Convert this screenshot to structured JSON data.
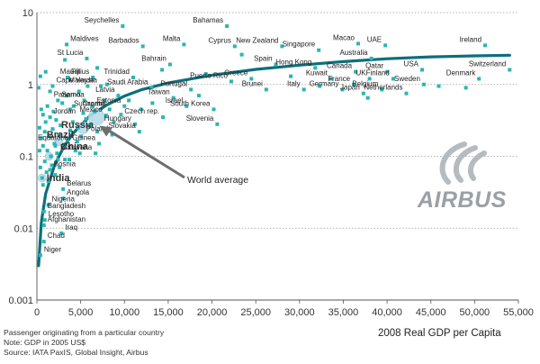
{
  "notes": [
    "Passenger originating from a particular country",
    "Note: GDP in 2005 US$",
    "Source: IATA PaxIS, Global Insight, Airbus"
  ],
  "logo": {
    "text": "AIRBUS"
  },
  "chart_data": {
    "type": "scatter",
    "title": "",
    "xlabel": "2008 Real GDP per Capita",
    "ylabel": "",
    "xlim": [
      0,
      55000
    ],
    "ylim": [
      0.001,
      10
    ],
    "y_scale": "log",
    "grid": "horizontal dotted",
    "x_ticks": [
      {
        "v": 0,
        "label": "0"
      },
      {
        "v": 5000,
        "label": "5,000"
      },
      {
        "v": 10000,
        "label": "10,000"
      },
      {
        "v": 15000,
        "label": "15,000"
      },
      {
        "v": 20000,
        "label": "20,000"
      },
      {
        "v": 25000,
        "label": "25,000"
      },
      {
        "v": 30000,
        "label": "30,000"
      },
      {
        "v": 35000,
        "label": "35,000"
      },
      {
        "v": 40000,
        "label": "40,000"
      },
      {
        "v": 45000,
        "label": "45,000"
      },
      {
        "v": 50000,
        "label": "50,000"
      },
      {
        "v": 55000,
        "label": "55,000"
      }
    ],
    "y_ticks": [
      {
        "v": 10,
        "label": "10"
      },
      {
        "v": 1,
        "label": "1"
      },
      {
        "v": 0.1,
        "label": "0.1"
      },
      {
        "v": 0.01,
        "label": "0.01"
      },
      {
        "v": 0.001,
        "label": "0.001"
      }
    ],
    "colors": {
      "points": "#2ab5b5",
      "trend": "#0d6f7c",
      "big_markers": "#b8dbe8",
      "arrow": "#6e6e6e"
    },
    "labeled_points": [
      {
        "name": "Seychelles",
        "x": 9800,
        "y": 6.5
      },
      {
        "name": "Bahamas",
        "x": 21700,
        "y": 6.5
      },
      {
        "name": "Maldives",
        "x": 3400,
        "y": 3.6
      },
      {
        "name": "Barbados",
        "x": 12100,
        "y": 3.4
      },
      {
        "name": "Malta",
        "x": 16800,
        "y": 3.6
      },
      {
        "name": "Cyprus",
        "x": 22600,
        "y": 3.4
      },
      {
        "name": "New Zealand",
        "x": 28000,
        "y": 3.4
      },
      {
        "name": "Singapore",
        "x": 32200,
        "y": 3.0
      },
      {
        "name": "Macao",
        "x": 36700,
        "y": 3.7
      },
      {
        "name": "UAE",
        "x": 39800,
        "y": 3.5
      },
      {
        "name": "Ireland",
        "x": 51200,
        "y": 3.5
      },
      {
        "name": "St Lucia",
        "x": 5700,
        "y": 2.3
      },
      {
        "name": "Bahrain",
        "x": 15200,
        "y": 1.9
      },
      {
        "name": "Spain",
        "x": 27300,
        "y": 1.9
      },
      {
        "name": "Hong Kong",
        "x": 31800,
        "y": 1.7
      },
      {
        "name": "Australia",
        "x": 38200,
        "y": 2.3
      },
      {
        "name": "Canada",
        "x": 36400,
        "y": 1.5
      },
      {
        "name": "Qatar",
        "x": 40000,
        "y": 1.5
      },
      {
        "name": "USA",
        "x": 44000,
        "y": 1.6
      },
      {
        "name": "Switzerland",
        "x": 54000,
        "y": 1.6
      },
      {
        "name": "Fiji",
        "x": 3500,
        "y": 1.25
      },
      {
        "name": "Mauritius",
        "x": 6400,
        "y": 1.25
      },
      {
        "name": "Trinidad",
        "x": 11000,
        "y": 1.25
      },
      {
        "name": "UK",
        "x": 38000,
        "y": 1.2
      },
      {
        "name": "Finland",
        "x": 40700,
        "y": 1.2
      },
      {
        "name": "Denmark",
        "x": 50500,
        "y": 1.2
      },
      {
        "name": "Puerto Rico",
        "x": 22200,
        "y": 1.1
      },
      {
        "name": "Greece",
        "x": 24500,
        "y": 1.2
      },
      {
        "name": "Kuwait",
        "x": 33600,
        "y": 1.2
      },
      {
        "name": "France",
        "x": 36200,
        "y": 1.0
      },
      {
        "name": "Sweden",
        "x": 44200,
        "y": 1.0
      },
      {
        "name": "Cape Verde",
        "x": 1800,
        "y": 0.95
      },
      {
        "name": "Malaysia",
        "x": 7300,
        "y": 0.95
      },
      {
        "name": "Saudi Arabia",
        "x": 13100,
        "y": 0.9
      },
      {
        "name": "Portugal",
        "x": 17600,
        "y": 0.85
      },
      {
        "name": "Brunei",
        "x": 26200,
        "y": 0.85
      },
      {
        "name": "Italy",
        "x": 30500,
        "y": 0.85
      },
      {
        "name": "Germany",
        "x": 34900,
        "y": 0.85
      },
      {
        "name": "Japan",
        "x": 37300,
        "y": 0.75
      },
      {
        "name": "Belgium",
        "x": 39400,
        "y": 0.85
      },
      {
        "name": "Netherlands",
        "x": 42200,
        "y": 0.75
      },
      {
        "name": "Latvia",
        "x": 9300,
        "y": 0.7
      },
      {
        "name": "Samoa",
        "x": 2400,
        "y": 0.6
      },
      {
        "name": "Suriname",
        "x": 3800,
        "y": 0.45
      },
      {
        "name": "Panama",
        "x": 5400,
        "y": 0.6
      },
      {
        "name": "Taiwan",
        "x": 15600,
        "y": 0.65
      },
      {
        "name": "Israel",
        "x": 17100,
        "y": 0.5
      },
      {
        "name": "Estonia",
        "x": 10000,
        "y": 0.5
      },
      {
        "name": "South Korea",
        "x": 20200,
        "y": 0.45
      },
      {
        "name": "Jordan",
        "x": 1500,
        "y": 0.35
      },
      {
        "name": "Croatie",
        "x": 8300,
        "y": 0.45
      },
      {
        "name": "Mexico",
        "x": 7900,
        "y": 0.37
      },
      {
        "name": "Czech rep.",
        "x": 14400,
        "y": 0.35
      },
      {
        "name": "Hungary",
        "x": 11200,
        "y": 0.28
      },
      {
        "name": "Slovakia",
        "x": 11700,
        "y": 0.22
      },
      {
        "name": "Slovenia",
        "x": 20600,
        "y": 0.28
      },
      {
        "name": "Russia",
        "x": 6900,
        "y": 0.22
      },
      {
        "name": "Poland",
        "x": 8600,
        "y": 0.2
      },
      {
        "name": "Brazil",
        "x": 4600,
        "y": 0.16
      },
      {
        "name": "Equatorial Guinea",
        "x": 7100,
        "y": 0.15
      },
      {
        "name": "China",
        "x": 2300,
        "y": 0.11
      },
      {
        "name": "Botswana",
        "x": 6700,
        "y": 0.11
      },
      {
        "name": "Bosnia",
        "x": 1500,
        "y": 0.065
      },
      {
        "name": "India",
        "x": 700,
        "y": 0.04
      },
      {
        "name": "Belarus",
        "x": 3000,
        "y": 0.035
      },
      {
        "name": "Angola",
        "x": 3000,
        "y": 0.026
      },
      {
        "name": "Nigeria",
        "x": 1300,
        "y": 0.021
      },
      {
        "name": "Bangladesh",
        "x": 800,
        "y": 0.017
      },
      {
        "name": "Lesotho",
        "x": 900,
        "y": 0.013
      },
      {
        "name": "Afghanistan",
        "x": 800,
        "y": 0.011
      },
      {
        "name": "Iraq",
        "x": 2800,
        "y": 0.0085
      },
      {
        "name": "Chad",
        "x": 800,
        "y": 0.0065
      },
      {
        "name": "Niger",
        "x": 400,
        "y": 0.0042
      }
    ],
    "unlabeled_points": [
      [
        300,
        0.25
      ],
      [
        500,
        0.18
      ],
      [
        700,
        0.14
      ],
      [
        900,
        0.22
      ],
      [
        1000,
        0.3
      ],
      [
        1200,
        0.12
      ],
      [
        1400,
        0.19
      ],
      [
        1600,
        0.1
      ],
      [
        1800,
        0.24
      ],
      [
        2000,
        0.15
      ],
      [
        2200,
        0.32
      ],
      [
        2500,
        0.2
      ],
      [
        2700,
        0.27
      ],
      [
        3000,
        0.13
      ],
      [
        3200,
        0.09
      ],
      [
        3500,
        0.17
      ],
      [
        3800,
        0.23
      ],
      [
        4100,
        0.3
      ],
      [
        4400,
        0.12
      ],
      [
        4700,
        0.25
      ],
      [
        5000,
        0.19
      ],
      [
        5300,
        0.4
      ],
      [
        5600,
        0.33
      ],
      [
        6000,
        0.27
      ],
      [
        6300,
        0.5
      ],
      [
        6600,
        0.42
      ],
      [
        400,
        0.07
      ],
      [
        600,
        0.05
      ],
      [
        900,
        0.085
      ],
      [
        1100,
        0.06
      ],
      [
        1300,
        0.045
      ],
      [
        1700,
        0.075
      ],
      [
        2100,
        0.055
      ],
      [
        2400,
        0.09
      ],
      [
        2600,
        0.07
      ],
      [
        300,
        0.12
      ],
      [
        700,
        0.38
      ],
      [
        1200,
        0.5
      ],
      [
        1900,
        0.42
      ],
      [
        2900,
        0.55
      ],
      [
        3400,
        0.7
      ],
      [
        4200,
        0.5
      ],
      [
        4800,
        0.8
      ],
      [
        5800,
        0.95
      ],
      [
        7700,
        0.6
      ],
      [
        8800,
        0.3
      ],
      [
        9600,
        0.38
      ],
      [
        10500,
        0.6
      ],
      [
        11900,
        0.45
      ],
      [
        13200,
        0.55
      ],
      [
        14300,
        1.6
      ],
      [
        18500,
        0.7
      ],
      [
        19300,
        1.4
      ],
      [
        23400,
        2.6
      ],
      [
        29000,
        1.3
      ],
      [
        32300,
        0.95
      ],
      [
        37800,
        0.65
      ],
      [
        45900,
        0.95
      ],
      [
        49000,
        0.9
      ],
      [
        1000,
        1.5
      ],
      [
        1500,
        0.8
      ],
      [
        500,
        0.45
      ],
      [
        200,
        0.9
      ],
      [
        400,
        1.3
      ],
      [
        3200,
        2.2
      ],
      [
        6900,
        1.7
      ],
      [
        8000,
        1.0
      ],
      [
        2100,
        0.14
      ],
      [
        3700,
        0.09
      ],
      [
        4900,
        0.11
      ]
    ],
    "big_markers": [
      {
        "x": 6800,
        "y": 0.35,
        "size": "large"
      },
      {
        "x": 5300,
        "y": 0.25,
        "size": "medium"
      },
      {
        "x": 2500,
        "y": 0.16,
        "size": "small"
      },
      {
        "x": 1400,
        "y": 0.1,
        "size": "small"
      },
      {
        "x": 600,
        "y": 0.05,
        "size": "small"
      }
    ],
    "trend_line": {
      "label": "World average",
      "points": [
        [
          200,
          0.003
        ],
        [
          500,
          0.012
        ],
        [
          1000,
          0.03
        ],
        [
          2000,
          0.075
        ],
        [
          3000,
          0.13
        ],
        [
          4000,
          0.2
        ],
        [
          5000,
          0.27
        ],
        [
          6000,
          0.36
        ],
        [
          8000,
          0.52
        ],
        [
          10000,
          0.69
        ],
        [
          12000,
          0.85
        ],
        [
          15000,
          1.05
        ],
        [
          20000,
          1.35
        ],
        [
          25000,
          1.62
        ],
        [
          30000,
          1.86
        ],
        [
          35000,
          2.08
        ],
        [
          40000,
          2.28
        ],
        [
          45000,
          2.42
        ],
        [
          50000,
          2.5
        ],
        [
          54000,
          2.55
        ]
      ]
    },
    "annotation": {
      "text": "World average",
      "target": {
        "x": 6800,
        "y": 0.3
      }
    }
  }
}
